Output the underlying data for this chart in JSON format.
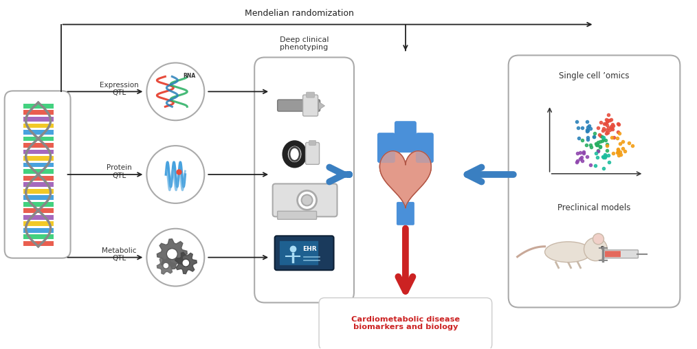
{
  "bg_color": "#ffffff",
  "mendelian_text": "Mendelian randomization",
  "deep_clinical_text": "Deep clinical\nphenotyping",
  "single_cell_text": "Single cell ’omics",
  "preclinical_text": "Preclinical models",
  "expression_qtl": "Expression\nQTL",
  "protein_qtl": "Protein\nQTL",
  "metabolic_qtl": "Metabolic\nQTL",
  "cardiometabolic_text": "Cardiometabolic disease\nbiomarkers and biology",
  "arrow_color_black": "#222222",
  "arrow_color_blue": "#3a7fc1",
  "arrow_color_red": "#cc2222",
  "box_edge_color": "#aaaaaa",
  "box_fill": "#ffffff",
  "rna_label": "RNA",
  "figsize": [
    10.14,
    5.08
  ],
  "dpi": 100
}
